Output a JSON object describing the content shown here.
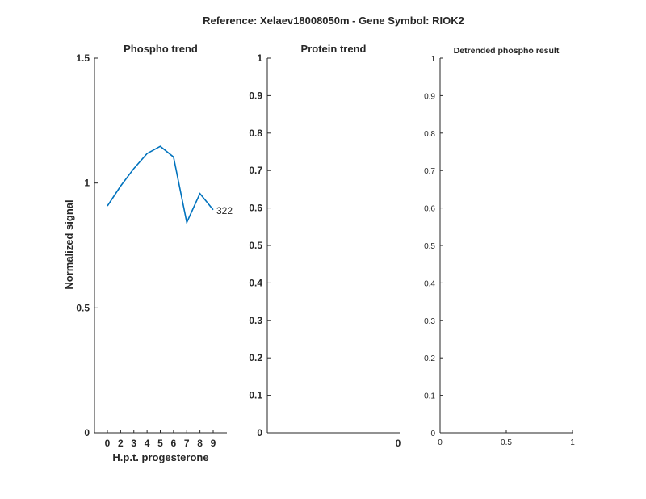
{
  "figure": {
    "suptitle": "Reference:  Xelaev18008050m - Gene Symbol:  RIOK2"
  },
  "chart_data": [
    {
      "type": "line",
      "title": "Phospho trend",
      "xlabel": "H.p.t. progesterone",
      "ylabel": "Normalized signal",
      "categories": [
        "0",
        "2",
        "3",
        "4",
        "5",
        "6",
        "7",
        "8",
        "9"
      ],
      "ylim": [
        0,
        1.5
      ],
      "yticks": [
        "0",
        "0.5",
        "1",
        "1.5"
      ],
      "series": [
        {
          "name": "322",
          "color": "#0072BD",
          "values": [
            0.908,
            0.988,
            1.058,
            1.118,
            1.147,
            1.104,
            0.842,
            0.958,
            0.893
          ]
        }
      ],
      "grid": false
    },
    {
      "type": "line",
      "title": "Protein trend",
      "ylim": [
        0,
        1
      ],
      "yticks": [
        "0",
        "0.1",
        "0.2",
        "0.3",
        "0.4",
        "0.5",
        "0.6",
        "0.7",
        "0.8",
        "0.9",
        "1"
      ],
      "xticks": [
        "0"
      ],
      "series": [],
      "grid": false
    },
    {
      "type": "line",
      "title": "Detrended phospho result",
      "ylim": [
        0,
        1
      ],
      "xlim": [
        0,
        1
      ],
      "yticks": [
        "0",
        "0.1",
        "0.2",
        "0.3",
        "0.4",
        "0.5",
        "0.6",
        "0.7",
        "0.8",
        "0.9",
        "1"
      ],
      "xticks": [
        "0",
        "0.5",
        "1"
      ],
      "series": [],
      "grid": false
    }
  ]
}
